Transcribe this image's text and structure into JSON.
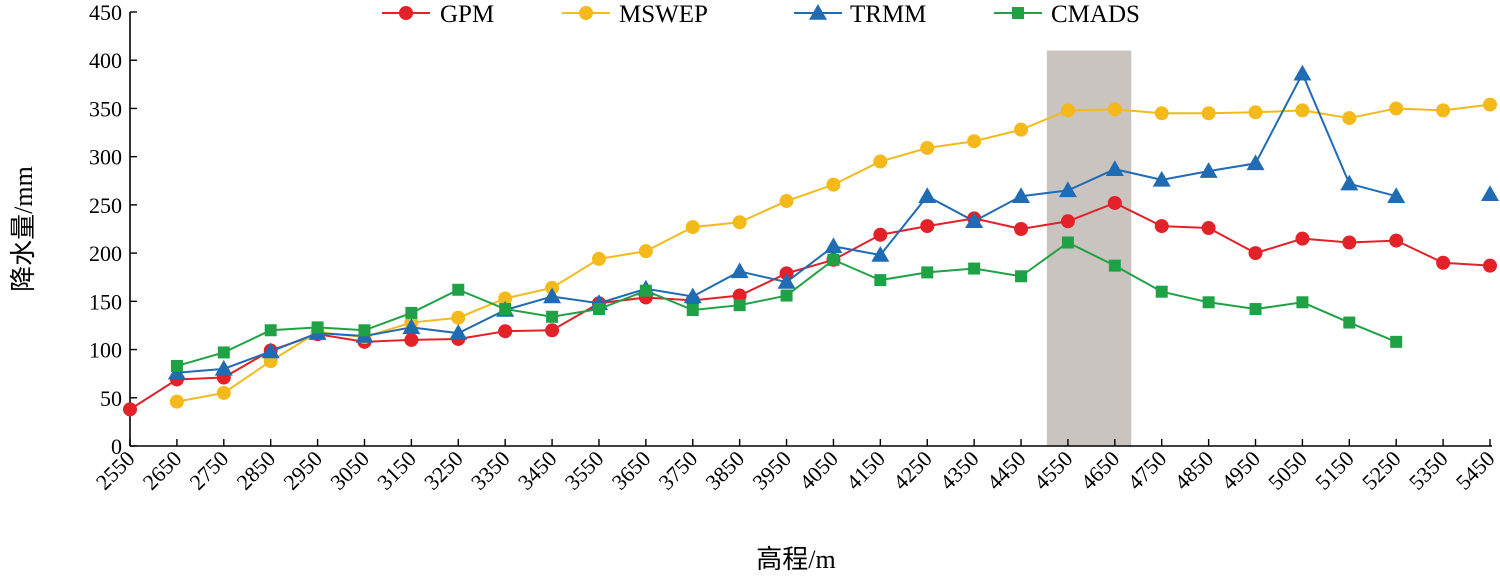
{
  "chart_data": {
    "type": "line",
    "title": "",
    "xlabel": "高程/m",
    "ylabel": "降水量/mm",
    "ylim": [
      0,
      450
    ],
    "yticks": [
      0,
      50,
      100,
      150,
      200,
      250,
      300,
      350,
      400,
      450
    ],
    "categories": [
      "2550",
      "2650",
      "2750",
      "2850",
      "2950",
      "3050",
      "3150",
      "3250",
      "3350",
      "3450",
      "3550",
      "3650",
      "3750",
      "3850",
      "3950",
      "4050",
      "4150",
      "4250",
      "4350",
      "4450",
      "4550",
      "4650",
      "4750",
      "4850",
      "4950",
      "5050",
      "5150",
      "5250",
      "5350",
      "5450"
    ],
    "highlight_band": {
      "from": "4550",
      "to": "4650",
      "color": "#c9c4c0"
    },
    "legend_position": "top",
    "grid": false,
    "series": [
      {
        "name": "GPM",
        "color": "#e32128",
        "marker": "circle",
        "values": [
          38,
          69,
          71,
          99,
          116,
          108,
          110,
          111,
          119,
          120,
          148,
          154,
          151,
          156,
          179,
          193,
          219,
          228,
          236,
          225,
          233,
          252,
          228,
          226,
          200,
          215,
          211,
          213,
          190,
          187
        ]
      },
      {
        "name": "MSWEP",
        "color": "#f4b91a",
        "marker": "circle",
        "values": [
          null,
          46,
          55,
          88,
          118,
          113,
          128,
          133,
          153,
          164,
          194,
          202,
          227,
          232,
          254,
          271,
          295,
          309,
          316,
          328,
          348,
          349,
          345,
          345,
          346,
          348,
          340,
          350,
          348,
          354
        ]
      },
      {
        "name": "TRMM",
        "color": "#1f6bb4",
        "marker": "triangle",
        "values": [
          null,
          76,
          80,
          98,
          117,
          114,
          123,
          117,
          141,
          155,
          148,
          163,
          155,
          181,
          170,
          207,
          198,
          259,
          233,
          259,
          265,
          287,
          276,
          285,
          293,
          386,
          272,
          259,
          null,
          261
        ]
      },
      {
        "name": "CMADS",
        "color": "#1ea245",
        "marker": "square",
        "values": [
          null,
          83,
          97,
          120,
          123,
          120,
          138,
          162,
          142,
          134,
          142,
          161,
          141,
          146,
          156,
          193,
          172,
          180,
          184,
          176,
          211,
          187,
          160,
          149,
          142,
          149,
          128,
          108,
          null,
          null
        ]
      }
    ]
  }
}
